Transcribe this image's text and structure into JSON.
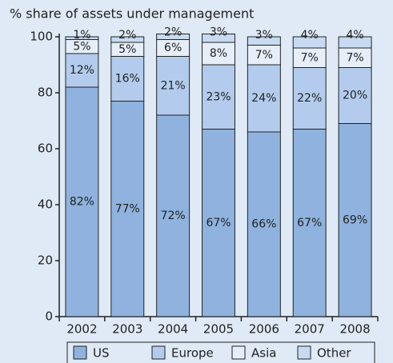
{
  "chart_data": {
    "type": "stacked_bar",
    "title": "% share of assets under management",
    "categories": [
      "2002",
      "2003",
      "2004",
      "2005",
      "2006",
      "2007",
      "2008"
    ],
    "series": [
      {
        "name": "US",
        "color": "#8fb3de",
        "values": [
          82,
          77,
          72,
          67,
          66,
          67,
          69
        ],
        "value_labels": [
          "82%",
          "77%",
          "72%",
          "67%",
          "66%",
          "67%",
          "69%"
        ]
      },
      {
        "name": "Europe",
        "color": "#b3cced",
        "values": [
          12,
          16,
          21,
          23,
          24,
          22,
          20
        ],
        "value_labels": [
          "12%",
          "16%",
          "21%",
          "23%",
          "24%",
          "22%",
          "20%"
        ]
      },
      {
        "name": "Asia",
        "color": "#e6eef9",
        "values": [
          5,
          5,
          6,
          8,
          7,
          7,
          7
        ],
        "value_labels": [
          "5%",
          "5%",
          "6%",
          "8%",
          "7%",
          "7%",
          "7%"
        ]
      },
      {
        "name": "Other",
        "color": "#c8daf2",
        "values": [
          1,
          2,
          2,
          3,
          3,
          4,
          4
        ],
        "value_labels": [
          "1%",
          "2%",
          "2%",
          "3%",
          "3%",
          "4%",
          "4%"
        ]
      }
    ],
    "ylim": [
      0,
      100
    ],
    "yticks": [
      0,
      20,
      40,
      60,
      80,
      100
    ]
  }
}
